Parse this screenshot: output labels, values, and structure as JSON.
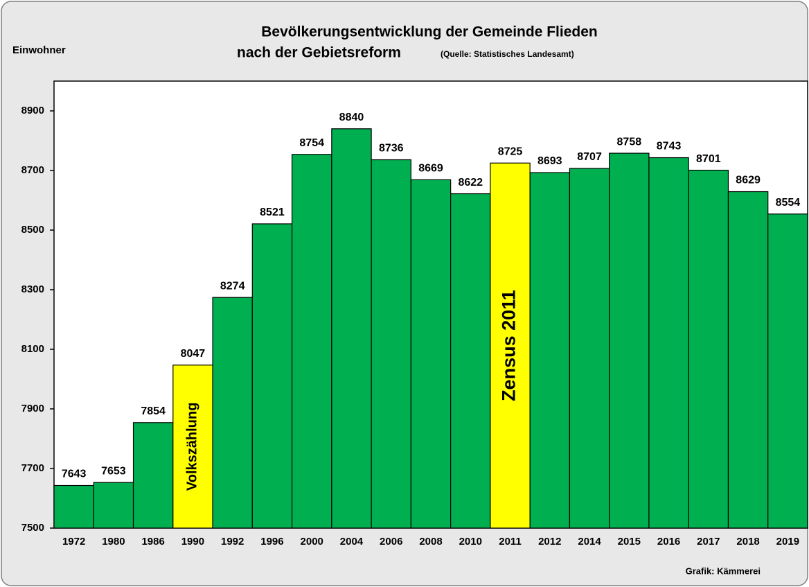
{
  "chart_data": {
    "type": "bar",
    "title": "Bevölkerungsentwicklung der Gemeinde Flieden",
    "title_line2": "nach der Gebietsreform",
    "source": "(Quelle: Statistisches Landesamt)",
    "y_label": "Einwohner",
    "credit": "Grafik: Kämmerei",
    "categories": [
      "1972",
      "1980",
      "1986",
      "1990",
      "1992",
      "1996",
      "2000",
      "2004",
      "2006",
      "2008",
      "2010",
      "2011",
      "2012",
      "2014",
      "2015",
      "2016",
      "2017",
      "2018",
      "2019"
    ],
    "values": [
      7643,
      7653,
      7854,
      8047,
      8274,
      8521,
      8754,
      8840,
      8736,
      8669,
      8622,
      8725,
      8693,
      8707,
      8758,
      8743,
      8701,
      8629,
      8554
    ],
    "colors": [
      "#00b050",
      "#00b050",
      "#00b050",
      "#ffff00",
      "#00b050",
      "#00b050",
      "#00b050",
      "#00b050",
      "#00b050",
      "#00b050",
      "#00b050",
      "#ffff00",
      "#00b050",
      "#00b050",
      "#00b050",
      "#00b050",
      "#00b050",
      "#00b050",
      "#00b050"
    ],
    "annotations": [
      {
        "text": "Volkszählung",
        "category": "1990"
      },
      {
        "text": "Zensus 2011",
        "category": "2011"
      }
    ],
    "ylim": [
      7500,
      9000
    ],
    "yticks": [
      7500,
      7700,
      7900,
      8100,
      8300,
      8500,
      8700,
      8900
    ],
    "grid": false
  }
}
